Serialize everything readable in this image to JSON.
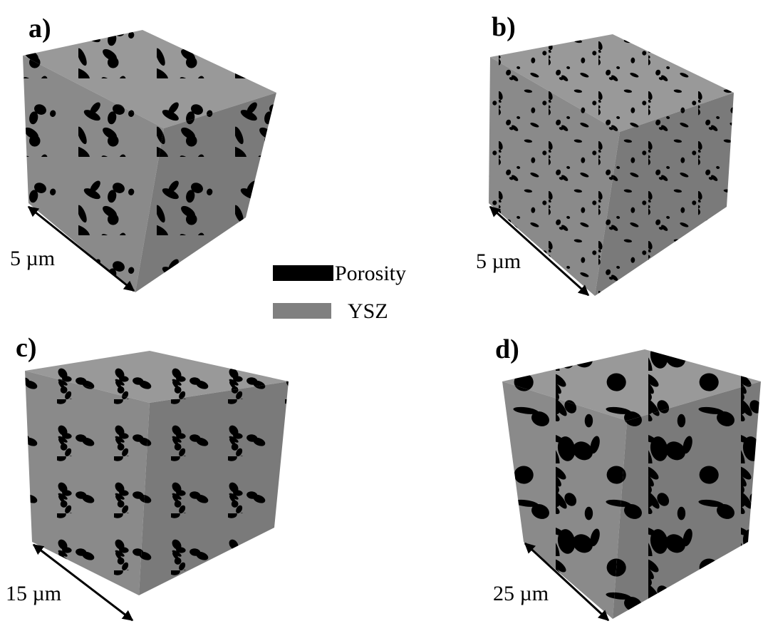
{
  "panels": [
    {
      "label": "a)",
      "scale": "5 µm"
    },
    {
      "label": "b)",
      "scale": "5 µm"
    },
    {
      "label": "c)",
      "scale": "15 µm"
    },
    {
      "label": "d)",
      "scale": "25 µm"
    }
  ],
  "legend": [
    {
      "label": "Porosity"
    },
    {
      "label": "YSZ"
    }
  ]
}
